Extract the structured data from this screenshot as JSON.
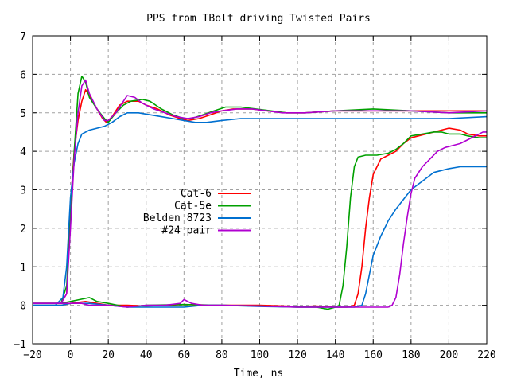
{
  "chart_data": {
    "type": "line",
    "title": "PPS from TBolt driving Twisted Pairs",
    "xlabel": "Time, ns",
    "ylabel": "",
    "xlim": [
      -20,
      220
    ],
    "ylim": [
      -1,
      7
    ],
    "xticks": [
      -20,
      0,
      20,
      40,
      60,
      80,
      100,
      120,
      140,
      160,
      180,
      200,
      220
    ],
    "yticks": [
      -1,
      0,
      1,
      2,
      3,
      4,
      5,
      6,
      7
    ],
    "grid": true,
    "legend_position": "center-left",
    "series": [
      {
        "name": "Cat-6",
        "color": "#ff0000",
        "rise_1": [
          [
            -20,
            0.05
          ],
          [
            -5,
            0.05
          ],
          [
            -2,
            0.3
          ],
          [
            0,
            2.6
          ],
          [
            2,
            4.0
          ],
          [
            4,
            4.8
          ],
          [
            6,
            5.3
          ],
          [
            8,
            5.6
          ],
          [
            10,
            5.45
          ],
          [
            14,
            5.1
          ],
          [
            17,
            4.85
          ],
          [
            19,
            4.75
          ],
          [
            22,
            4.9
          ],
          [
            26,
            5.2
          ],
          [
            30,
            5.3
          ],
          [
            36,
            5.3
          ],
          [
            40,
            5.2
          ],
          [
            46,
            5.1
          ],
          [
            52,
            4.95
          ],
          [
            58,
            4.85
          ],
          [
            62,
            4.8
          ],
          [
            68,
            4.85
          ],
          [
            74,
            4.95
          ],
          [
            80,
            5.05
          ],
          [
            86,
            5.1
          ],
          [
            96,
            5.1
          ],
          [
            104,
            5.05
          ],
          [
            114,
            5.0
          ],
          [
            124,
            5.0
          ],
          [
            140,
            5.05
          ],
          [
            160,
            5.05
          ],
          [
            180,
            5.05
          ],
          [
            200,
            5.05
          ],
          [
            220,
            5.05
          ]
        ],
        "low_1": [
          [
            -20,
            0.0
          ],
          [
            -5,
            0.0
          ],
          [
            0,
            0.05
          ],
          [
            8,
            0.1
          ],
          [
            14,
            0.05
          ],
          [
            20,
            0.0
          ],
          [
            30,
            0.0
          ],
          [
            40,
            -0.02
          ],
          [
            60,
            0.02
          ],
          [
            80,
            0.0
          ],
          [
            100,
            0.0
          ],
          [
            120,
            -0.03
          ],
          [
            130,
            -0.02
          ]
        ],
        "rise_2": [
          [
            130,
            -0.02
          ],
          [
            140,
            -0.05
          ],
          [
            146,
            -0.05
          ],
          [
            150,
            0.0
          ],
          [
            152,
            0.3
          ],
          [
            154,
            1.0
          ],
          [
            156,
            2.0
          ],
          [
            158,
            2.8
          ],
          [
            160,
            3.4
          ],
          [
            164,
            3.8
          ],
          [
            168,
            3.9
          ],
          [
            172,
            4.0
          ],
          [
            176,
            4.2
          ],
          [
            180,
            4.35
          ],
          [
            188,
            4.45
          ],
          [
            196,
            4.55
          ],
          [
            200,
            4.6
          ],
          [
            206,
            4.55
          ],
          [
            210,
            4.45
          ],
          [
            216,
            4.4
          ],
          [
            220,
            4.4
          ]
        ]
      },
      {
        "name": "Cat-5e",
        "color": "#00a000",
        "rise_1": [
          [
            -20,
            0.05
          ],
          [
            -5,
            0.05
          ],
          [
            -2,
            0.5
          ],
          [
            0,
            2.2
          ],
          [
            2,
            4.0
          ],
          [
            4,
            5.5
          ],
          [
            6,
            5.95
          ],
          [
            8,
            5.8
          ],
          [
            10,
            5.4
          ],
          [
            14,
            5.1
          ],
          [
            18,
            4.85
          ],
          [
            20,
            4.75
          ],
          [
            24,
            5.0
          ],
          [
            28,
            5.2
          ],
          [
            32,
            5.3
          ],
          [
            38,
            5.35
          ],
          [
            42,
            5.3
          ],
          [
            48,
            5.1
          ],
          [
            54,
            4.95
          ],
          [
            60,
            4.85
          ],
          [
            64,
            4.85
          ],
          [
            70,
            4.95
          ],
          [
            76,
            5.05
          ],
          [
            82,
            5.15
          ],
          [
            90,
            5.15
          ],
          [
            98,
            5.1
          ],
          [
            106,
            5.05
          ],
          [
            114,
            5.0
          ],
          [
            124,
            5.0
          ],
          [
            140,
            5.05
          ],
          [
            160,
            5.1
          ],
          [
            180,
            5.05
          ],
          [
            200,
            5.0
          ],
          [
            220,
            5.0
          ]
        ],
        "low_1": [
          [
            -20,
            0.05
          ],
          [
            -5,
            0.05
          ],
          [
            0,
            0.1
          ],
          [
            5,
            0.15
          ],
          [
            10,
            0.2
          ],
          [
            14,
            0.1
          ],
          [
            20,
            0.05
          ],
          [
            30,
            -0.05
          ],
          [
            40,
            0.0
          ],
          [
            60,
            0.02
          ],
          [
            80,
            0.0
          ],
          [
            100,
            -0.02
          ],
          [
            120,
            -0.05
          ],
          [
            130,
            -0.05
          ]
        ],
        "rise_2": [
          [
            130,
            -0.05
          ],
          [
            136,
            -0.1
          ],
          [
            140,
            -0.05
          ],
          [
            142,
            0.0
          ],
          [
            144,
            0.5
          ],
          [
            146,
            1.5
          ],
          [
            148,
            2.8
          ],
          [
            150,
            3.6
          ],
          [
            152,
            3.85
          ],
          [
            156,
            3.9
          ],
          [
            162,
            3.9
          ],
          [
            168,
            3.95
          ],
          [
            172,
            4.05
          ],
          [
            176,
            4.2
          ],
          [
            180,
            4.4
          ],
          [
            186,
            4.45
          ],
          [
            192,
            4.5
          ],
          [
            196,
            4.5
          ],
          [
            200,
            4.45
          ],
          [
            206,
            4.45
          ],
          [
            210,
            4.4
          ],
          [
            216,
            4.35
          ],
          [
            220,
            4.35
          ]
        ]
      },
      {
        "name": "Belden 8723",
        "color": "#0070d0",
        "rise_1": [
          [
            -20,
            0.0
          ],
          [
            -8,
            0.0
          ],
          [
            -4,
            0.2
          ],
          [
            -2,
            1.0
          ],
          [
            0,
            2.8
          ],
          [
            2,
            3.7
          ],
          [
            4,
            4.2
          ],
          [
            6,
            4.45
          ],
          [
            10,
            4.55
          ],
          [
            14,
            4.6
          ],
          [
            18,
            4.65
          ],
          [
            22,
            4.75
          ],
          [
            26,
            4.9
          ],
          [
            30,
            5.0
          ],
          [
            36,
            5.0
          ],
          [
            42,
            4.95
          ],
          [
            48,
            4.9
          ],
          [
            54,
            4.85
          ],
          [
            60,
            4.8
          ],
          [
            66,
            4.75
          ],
          [
            72,
            4.75
          ],
          [
            80,
            4.8
          ],
          [
            90,
            4.85
          ],
          [
            100,
            4.85
          ],
          [
            120,
            4.85
          ],
          [
            140,
            4.85
          ],
          [
            160,
            4.85
          ],
          [
            180,
            4.85
          ],
          [
            200,
            4.85
          ],
          [
            220,
            4.9
          ]
        ],
        "low_1": [
          [
            -20,
            0.0
          ],
          [
            -5,
            0.0
          ],
          [
            0,
            0.05
          ],
          [
            10,
            0.05
          ],
          [
            20,
            0.0
          ],
          [
            30,
            -0.05
          ],
          [
            40,
            -0.05
          ],
          [
            50,
            -0.05
          ],
          [
            60,
            -0.05
          ],
          [
            70,
            0.0
          ],
          [
            80,
            0.0
          ],
          [
            100,
            -0.03
          ],
          [
            120,
            -0.05
          ],
          [
            140,
            -0.05
          ]
        ],
        "rise_2": [
          [
            140,
            -0.05
          ],
          [
            150,
            -0.05
          ],
          [
            154,
            0.0
          ],
          [
            156,
            0.3
          ],
          [
            158,
            0.8
          ],
          [
            160,
            1.3
          ],
          [
            164,
            1.8
          ],
          [
            168,
            2.2
          ],
          [
            172,
            2.5
          ],
          [
            176,
            2.75
          ],
          [
            180,
            3.0
          ],
          [
            184,
            3.15
          ],
          [
            188,
            3.3
          ],
          [
            192,
            3.45
          ],
          [
            196,
            3.5
          ],
          [
            200,
            3.55
          ],
          [
            206,
            3.6
          ],
          [
            212,
            3.6
          ],
          [
            220,
            3.6
          ]
        ]
      },
      {
        "name": "#24 pair",
        "color": "#b000d0",
        "rise_1": [
          [
            -20,
            0.05
          ],
          [
            -5,
            0.05
          ],
          [
            -2,
            0.3
          ],
          [
            0,
            2.0
          ],
          [
            2,
            3.8
          ],
          [
            4,
            5.0
          ],
          [
            6,
            5.7
          ],
          [
            8,
            5.85
          ],
          [
            10,
            5.5
          ],
          [
            14,
            5.1
          ],
          [
            18,
            4.8
          ],
          [
            20,
            4.8
          ],
          [
            24,
            5.0
          ],
          [
            28,
            5.3
          ],
          [
            30,
            5.45
          ],
          [
            34,
            5.4
          ],
          [
            38,
            5.25
          ],
          [
            44,
            5.1
          ],
          [
            50,
            5.0
          ],
          [
            56,
            4.9
          ],
          [
            62,
            4.85
          ],
          [
            68,
            4.9
          ],
          [
            74,
            5.0
          ],
          [
            80,
            5.05
          ],
          [
            88,
            5.1
          ],
          [
            96,
            5.1
          ],
          [
            104,
            5.05
          ],
          [
            112,
            5.0
          ],
          [
            124,
            5.0
          ],
          [
            140,
            5.05
          ],
          [
            160,
            5.05
          ],
          [
            180,
            5.05
          ],
          [
            200,
            5.0
          ],
          [
            220,
            5.05
          ]
        ],
        "low_1": [
          [
            -20,
            0.05
          ],
          [
            -5,
            0.05
          ],
          [
            0,
            0.05
          ],
          [
            6,
            0.05
          ],
          [
            10,
            0.0
          ],
          [
            20,
            0.0
          ],
          [
            30,
            -0.05
          ],
          [
            40,
            0.0
          ],
          [
            50,
            0.0
          ],
          [
            58,
            0.05
          ],
          [
            60,
            0.15
          ],
          [
            64,
            0.05
          ],
          [
            70,
            0.0
          ],
          [
            80,
            0.0
          ],
          [
            100,
            -0.02
          ],
          [
            120,
            -0.05
          ],
          [
            140,
            -0.05
          ],
          [
            160,
            -0.05
          ],
          [
            168,
            -0.05
          ]
        ],
        "rise_2": [
          [
            168,
            -0.05
          ],
          [
            170,
            0.0
          ],
          [
            172,
            0.2
          ],
          [
            174,
            0.8
          ],
          [
            176,
            1.6
          ],
          [
            178,
            2.3
          ],
          [
            180,
            2.9
          ],
          [
            182,
            3.3
          ],
          [
            186,
            3.6
          ],
          [
            190,
            3.8
          ],
          [
            194,
            4.0
          ],
          [
            198,
            4.1
          ],
          [
            202,
            4.15
          ],
          [
            206,
            4.2
          ],
          [
            210,
            4.3
          ],
          [
            214,
            4.4
          ],
          [
            218,
            4.5
          ],
          [
            220,
            4.5
          ]
        ]
      }
    ]
  }
}
